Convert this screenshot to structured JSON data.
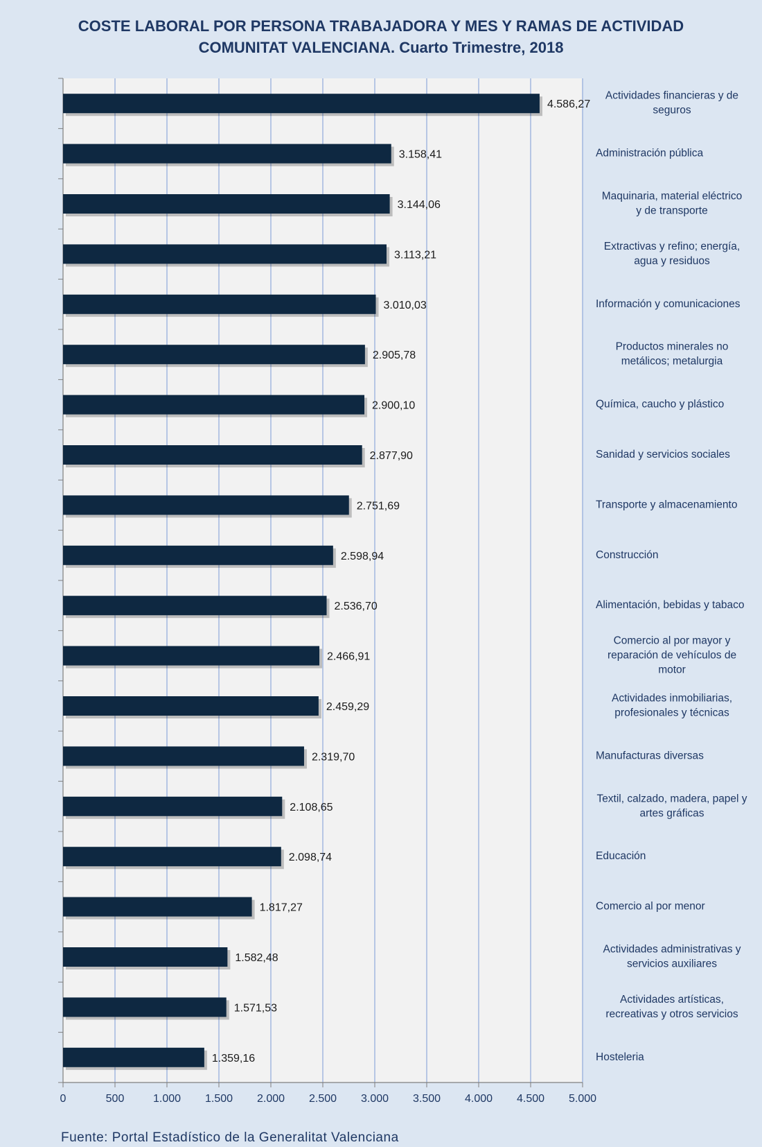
{
  "chart_data": {
    "type": "bar",
    "orientation": "horizontal",
    "title_line1": "COSTE LABORAL POR PERSONA TRABAJADORA Y MES Y RAMAS DE ACTIVIDAD",
    "title_line2": "COMUNITAT VALENCIANA. Cuarto Trimestre, 2018",
    "categories": [
      [
        "Actividades financieras y de",
        "seguros"
      ],
      [
        "Administración pública"
      ],
      [
        "Maquinaria, material eléctrico",
        "y de transporte"
      ],
      [
        "Extractivas y refino; energía,",
        "agua y residuos"
      ],
      [
        "Información y comunicaciones"
      ],
      [
        "Productos minerales no",
        "metálicos; metalurgia"
      ],
      [
        "Química, caucho y plástico"
      ],
      [
        "Sanidad y servicios sociales"
      ],
      [
        "Transporte y almacenamiento"
      ],
      [
        "Construcción"
      ],
      [
        "Alimentación, bebidas y tabaco"
      ],
      [
        "Comercio al por mayor y",
        "reparación de vehículos de",
        "motor"
      ],
      [
        "Actividades inmobiliarias,",
        "profesionales y técnicas"
      ],
      [
        "Manufacturas diversas"
      ],
      [
        "Textil, calzado, madera, papel y",
        "artes gráficas"
      ],
      [
        "Educación"
      ],
      [
        "Comercio al por menor"
      ],
      [
        "Actividades administrativas y",
        "servicios auxiliares"
      ],
      [
        "Actividades artísticas,",
        "recreativas y otros servicios"
      ],
      [
        "Hosteleria"
      ]
    ],
    "values": [
      4586.27,
      3158.41,
      3144.06,
      3113.21,
      3010.03,
      2905.78,
      2900.1,
      2877.9,
      2751.69,
      2598.94,
      2536.7,
      2466.91,
      2459.29,
      2319.7,
      2108.65,
      2098.74,
      1817.27,
      1582.48,
      1571.53,
      1359.16
    ],
    "value_labels": [
      "4.586,27",
      "3.158,41",
      "3.144,06",
      "3.113,21",
      "3.010,03",
      "2.905,78",
      "2.900,10",
      "2.877,90",
      "2.751,69",
      "2.598,94",
      "2.536,70",
      "2.466,91",
      "2.459,29",
      "2.319,70",
      "2.108,65",
      "2.098,74",
      "1.817,27",
      "1.582,48",
      "1.571,53",
      "1.359,16"
    ],
    "x_ticks": [
      0,
      500,
      1000,
      1500,
      2000,
      2500,
      3000,
      3500,
      4000,
      4500,
      5000
    ],
    "x_tick_labels": [
      "0",
      "500",
      "1.000",
      "1.500",
      "2.000",
      "2.500",
      "3.000",
      "3.500",
      "4.000",
      "4.500",
      "5.000"
    ],
    "xlim": [
      0,
      5000
    ],
    "grid": true,
    "colors": {
      "bar": "#0e2841",
      "background": "#dce6f2",
      "plot_area": "#f2f2f2",
      "gridline": "#8eaadb",
      "text": "#1f3864"
    }
  },
  "source": "Fuente: Portal Estadístico de la Generalitat Valenciana"
}
